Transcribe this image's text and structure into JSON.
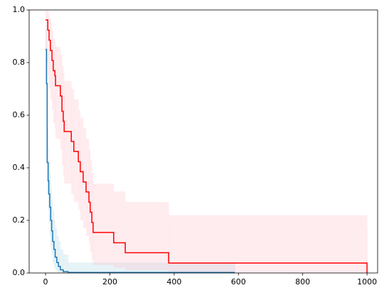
{
  "chart_data": {
    "type": "step",
    "xlim": [
      -51,
      1033
    ],
    "ylim": [
      0,
      1
    ],
    "xticks": [
      0,
      200,
      400,
      600,
      800,
      1000
    ],
    "yticks": [
      {
        "value": 0,
        "label": "0.0"
      },
      0.2,
      0.4,
      0.6,
      0.8,
      {
        "value": 1,
        "label": "1.0"
      }
    ],
    "series": [
      {
        "color": "#1f77b4",
        "band_color": "#add8e6",
        "x": [
          0,
          3,
          5,
          8,
          10,
          13,
          16,
          19,
          22,
          26,
          30,
          35,
          40,
          46,
          55,
          70,
          589
        ],
        "values": [
          0.85,
          0.72,
          0.42,
          0.35,
          0.3,
          0.25,
          0.2,
          0.16,
          0.12,
          0.09,
          0.06,
          0.04,
          0.025,
          0.012,
          0.005,
          0.002,
          0.002
        ],
        "upper": [
          0.93,
          0.82,
          0.55,
          0.48,
          0.43,
          0.38,
          0.32,
          0.28,
          0.24,
          0.2,
          0.17,
          0.14,
          0.12,
          0.09,
          0.07,
          0.04,
          0.02
        ],
        "lower": [
          0.72,
          0.58,
          0.3,
          0.24,
          0.19,
          0.14,
          0.1,
          0.07,
          0.04,
          0.02,
          0.01,
          0.003,
          0,
          0,
          0,
          0,
          0
        ]
      },
      {
        "color": "#ff0000",
        "band_color": "#ffc0cb",
        "x": [
          0,
          7,
          11,
          15,
          20,
          24,
          29,
          31,
          46,
          51,
          55,
          58,
          80,
          88,
          102,
          108,
          117,
          126,
          135,
          139,
          144,
          148,
          212,
          248,
          383,
          1000
        ],
        "values": [
          0.962,
          0.923,
          0.885,
          0.846,
          0.808,
          0.769,
          0.75,
          0.712,
          0.673,
          0.615,
          0.577,
          0.538,
          0.5,
          0.462,
          0.423,
          0.385,
          0.346,
          0.308,
          0.269,
          0.231,
          0.192,
          0.154,
          0.115,
          0.077,
          0.038,
          0
        ],
        "upper": [
          1,
          0.99,
          0.97,
          0.95,
          0.92,
          0.89,
          0.88,
          0.86,
          0.83,
          0.79,
          0.76,
          0.73,
          0.7,
          0.66,
          0.62,
          0.59,
          0.55,
          0.51,
          0.47,
          0.43,
          0.38,
          0.34,
          0.31,
          0.27,
          0.22,
          0.165
        ],
        "lower": [
          0.8,
          0.75,
          0.7,
          0.66,
          0.62,
          0.57,
          0.55,
          0.51,
          0.47,
          0.41,
          0.37,
          0.34,
          0.3,
          0.27,
          0.24,
          0.2,
          0.17,
          0.14,
          0.11,
          0.08,
          0.05,
          0.03,
          0.02,
          0.01,
          0,
          0
        ]
      }
    ]
  }
}
